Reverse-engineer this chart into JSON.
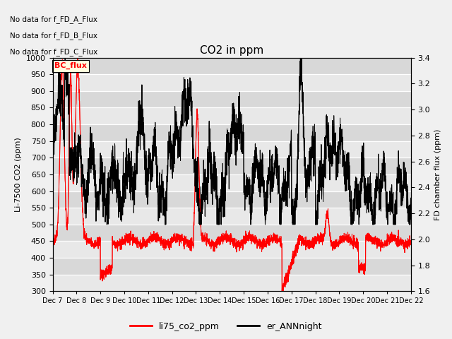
{
  "title": "CO2 in ppm",
  "ylabel_left": "Li-7500 CO2 (ppm)",
  "ylabel_right": "FD chamber flux (ppm)",
  "ylim_left": [
    300,
    1000
  ],
  "ylim_right": [
    1.6,
    3.4
  ],
  "yticks_left": [
    300,
    350,
    400,
    450,
    500,
    550,
    600,
    650,
    700,
    750,
    800,
    850,
    900,
    950,
    1000
  ],
  "yticks_right": [
    1.6,
    1.8,
    2.0,
    2.2,
    2.4,
    2.6,
    2.8,
    3.0,
    3.2,
    3.4
  ],
  "xtick_labels": [
    "Dec 7",
    "Dec 8",
    "Dec 9",
    "Dec 10",
    "Dec 11",
    "Dec 12",
    "Dec 13",
    "Dec 14",
    "Dec 15",
    "Dec 16",
    "Dec 17",
    "Dec 18",
    "Dec 19",
    "Dec 20",
    "Dec 21",
    "Dec 22"
  ],
  "legend_labels": [
    "li75_co2_ppm",
    "er_ANNnight"
  ],
  "legend_colors": [
    "red",
    "black"
  ],
  "text_lines": [
    "No data for f_FD_A_Flux",
    "No data for f_FD_B_Flux",
    "No data for f_FD_C_Flux"
  ],
  "bc_flux_label": "BC_flux",
  "line_li75_color": "red",
  "line_er_color": "black",
  "background_color": "#f0f0f0",
  "plot_bg_color": "#e8e8e8",
  "n_points": 3000,
  "figsize": [
    6.4,
    4.8
  ],
  "dpi": 100
}
